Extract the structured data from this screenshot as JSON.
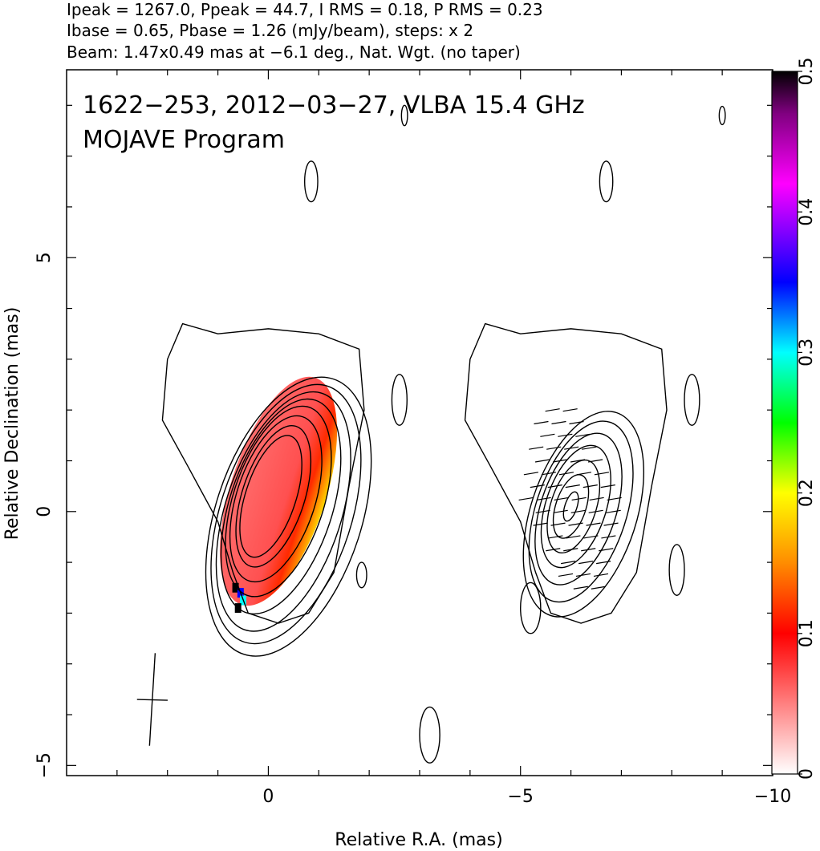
{
  "header": {
    "line1": "Ipeak = 1267.0, Ppeak = 44.7, I RMS = 0.18, P RMS = 0.23",
    "line2": "Ibase = 0.65, Pbase = 1.26 (mJy/beam), steps: x 2",
    "line3": "Beam: 1.47x0.49 mas at −6.1 deg., Nat. Wgt. (no taper)"
  },
  "chart_data": {
    "type": "heatmap",
    "title": "1622−253, 2012−03−27, VLBA 15.4 GHz",
    "subtitle": "MOJAVE Program",
    "xlabel": "Relative R.A. (mas)",
    "ylabel": "Relative Declination (mas)",
    "xlim": [
      4.0,
      -10.0
    ],
    "ylim": [
      -5.2,
      8.7
    ],
    "x_ticks": [
      {
        "value": 0,
        "label": "0"
      },
      {
        "value": -5,
        "label": "−5"
      },
      {
        "value": -10,
        "label": "−10"
      }
    ],
    "y_ticks": [
      {
        "value": 5,
        "label": "5"
      },
      {
        "value": 0,
        "label": "0"
      },
      {
        "value": -5,
        "label": "−5"
      }
    ],
    "colorbar": {
      "range": [
        0,
        0.5
      ],
      "ticks": [
        {
          "value": 0,
          "label": "0"
        },
        {
          "value": 0.1,
          "label": "0.1"
        },
        {
          "value": 0.2,
          "label": "0.2"
        },
        {
          "value": 0.3,
          "label": "0.3"
        },
        {
          "value": 0.4,
          "label": "0.4"
        },
        {
          "value": 0.5,
          "label": "0.5"
        }
      ],
      "stops": [
        {
          "v": 0.0,
          "c": "#ffffff"
        },
        {
          "v": 0.05,
          "c": "#ff8080"
        },
        {
          "v": 0.1,
          "c": "#ff0000"
        },
        {
          "v": 0.15,
          "c": "#ff8c00"
        },
        {
          "v": 0.2,
          "c": "#ffff00"
        },
        {
          "v": 0.25,
          "c": "#00ff00"
        },
        {
          "v": 0.3,
          "c": "#00ffff"
        },
        {
          "v": 0.35,
          "c": "#0000ff"
        },
        {
          "v": 0.42,
          "c": "#ff00ff"
        },
        {
          "v": 0.47,
          "c": "#800080"
        },
        {
          "v": 0.5,
          "c": "#000000"
        }
      ]
    },
    "panels": [
      {
        "name": "total intensity + fractional polarization",
        "offset_x": 0,
        "core": {
          "x": 0.0,
          "y": 0.3
        },
        "contours": [
          {
            "cx": -0.05,
            "cy": 0.3,
            "rx": 0.5,
            "ry": 1.25
          },
          {
            "cx": -0.1,
            "cy": 0.3,
            "rx": 0.62,
            "ry": 1.45
          },
          {
            "cx": -0.15,
            "cy": 0.25,
            "rx": 0.78,
            "ry": 1.7
          },
          {
            "cx": -0.2,
            "cy": 0.2,
            "rx": 0.9,
            "ry": 1.95
          },
          {
            "cx": -0.25,
            "cy": 0.1,
            "rx": 1.02,
            "ry": 2.2
          },
          {
            "cx": -0.3,
            "cy": 0.0,
            "rx": 1.15,
            "ry": 2.45
          },
          {
            "cx": -0.35,
            "cy": -0.05,
            "rx": 1.3,
            "ry": 2.65
          },
          {
            "cx": -0.4,
            "cy": -0.1,
            "rx": 1.45,
            "ry": 2.85
          }
        ]
      },
      {
        "name": "polarized intensity + EVPA",
        "offset_x": -6.0,
        "core": {
          "x": -6.0,
          "y": 0.1
        },
        "contours": [
          {
            "cx": -6.0,
            "cy": 0.1,
            "rx": 0.12,
            "ry": 0.3
          },
          {
            "cx": -6.0,
            "cy": 0.1,
            "rx": 0.3,
            "ry": 0.65
          },
          {
            "cx": -6.05,
            "cy": 0.1,
            "rx": 0.45,
            "ry": 0.95
          },
          {
            "cx": -6.1,
            "cy": 0.1,
            "rx": 0.6,
            "ry": 1.25
          },
          {
            "cx": -6.15,
            "cy": 0.05,
            "rx": 0.75,
            "ry": 1.55
          },
          {
            "cx": -6.2,
            "cy": 0.0,
            "rx": 0.9,
            "ry": 1.85
          },
          {
            "cx": -6.25,
            "cy": -0.05,
            "rx": 1.05,
            "ry": 2.1
          }
        ]
      }
    ],
    "noise_islands": [
      {
        "x": -2.7,
        "y": 7.8,
        "rx": 0.06,
        "ry": 0.2
      },
      {
        "x": -0.85,
        "y": 6.5,
        "rx": 0.13,
        "ry": 0.4
      },
      {
        "x": -9.0,
        "y": 7.8,
        "rx": 0.06,
        "ry": 0.18
      },
      {
        "x": -6.7,
        "y": 6.5,
        "rx": 0.13,
        "ry": 0.4
      },
      {
        "x": -2.6,
        "y": 2.2,
        "rx": 0.15,
        "ry": 0.5
      },
      {
        "x": -8.4,
        "y": 2.2,
        "rx": 0.15,
        "ry": 0.5
      },
      {
        "x": -1.85,
        "y": -1.25,
        "rx": 0.1,
        "ry": 0.25
      },
      {
        "x": -5.2,
        "y": -1.9,
        "rx": 0.2,
        "ry": 0.5
      },
      {
        "x": -8.1,
        "y": -1.15,
        "rx": 0.15,
        "ry": 0.5
      },
      {
        "x": -3.2,
        "y": -4.4,
        "rx": 0.2,
        "ry": 0.55
      }
    ],
    "beam": {
      "major_mas": 1.47,
      "minor_mas": 0.49,
      "pa_deg": -6.1,
      "x": 2.3,
      "y": -3.7
    }
  }
}
